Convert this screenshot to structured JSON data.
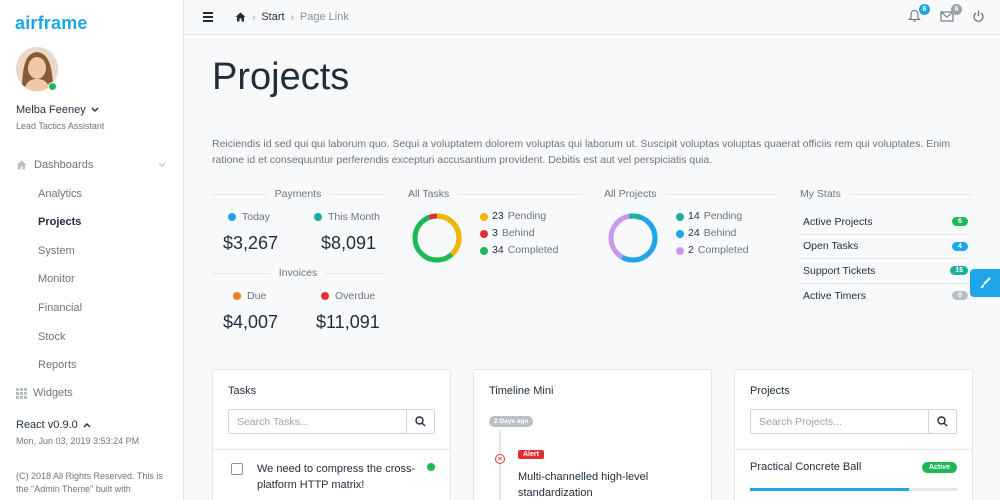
{
  "brand": "airframe",
  "user": {
    "name": "Melba Feeney",
    "role": "Lead Tactics Assistant"
  },
  "sidebar": {
    "group": "Dashboards",
    "items": [
      {
        "label": "Analytics",
        "active": false
      },
      {
        "label": "Projects",
        "active": true
      },
      {
        "label": "System",
        "active": false
      },
      {
        "label": "Monitor",
        "active": false
      },
      {
        "label": "Financial",
        "active": false
      },
      {
        "label": "Stock",
        "active": false
      },
      {
        "label": "Reports",
        "active": false
      }
    ],
    "widgets": "Widgets",
    "version": "React v0.9.0",
    "date": "Mon, Jun 03, 2019 3:53:24 PM",
    "copyright": "(C) 2018 All Rights Reserved. This is the \"Admin Theme\" built with"
  },
  "topbar": {
    "crumb_start": "Start",
    "crumb_page": "Page Link",
    "notifications_count": "6",
    "messages_count": "6"
  },
  "page": {
    "title": "Projects",
    "intro": "Reiciendis id sed qui qui laborum quo. Sequi a voluptatem dolorem voluptas qui laborum ut. Suscipit voluptas voluptas quaerat officiis rem qui voluptates. Enim ratione id et consequuntur perferendis excepturi accusantium provident. Debitis est aut vel perspiciatis quia."
  },
  "payments": {
    "title": "Payments",
    "today_label": "Today",
    "today_value": "$3,267",
    "month_label": "This Month",
    "month_value": "$8,091"
  },
  "invoices": {
    "title": "Invoices",
    "due_label": "Due",
    "due_value": "$4,007",
    "overdue_label": "Overdue",
    "overdue_value": "$11,091"
  },
  "all_tasks": {
    "title": "All Tasks",
    "items": [
      {
        "count": "23",
        "label": "Pending",
        "color": "#f5b400"
      },
      {
        "count": "3",
        "label": "Behind",
        "color": "#e03131"
      },
      {
        "count": "34",
        "label": "Completed",
        "color": "#1db954"
      }
    ]
  },
  "all_projects": {
    "title": "All Projects",
    "items": [
      {
        "count": "14",
        "label": "Pending",
        "color": "#1fad9f"
      },
      {
        "count": "24",
        "label": "Behind",
        "color": "#1ea7e8"
      },
      {
        "count": "2",
        "label": "Completed",
        "color": "#c59bf0"
      }
    ]
  },
  "my_stats": {
    "title": "My Stats",
    "rows": [
      {
        "label": "Active Projects",
        "value": "6",
        "color": "#1db954"
      },
      {
        "label": "Open Tasks",
        "value": "4",
        "color": "#1ea7e8"
      },
      {
        "label": "Support Tickets",
        "value": "15",
        "color": "#1fad9f"
      },
      {
        "label": "Active Timers",
        "value": "0",
        "color": "#b8bfc6"
      }
    ]
  },
  "tasks_card": {
    "title": "Tasks",
    "search_placeholder": "Search Tasks...",
    "task": "We need to compress the cross-platform HTTP matrix!"
  },
  "timeline_card": {
    "title": "Timeline Mini",
    "date": "2 Days ago",
    "alert": "Alert",
    "text": "Multi-channelled high-level standardization"
  },
  "projects_card": {
    "title": "Projects",
    "search_placeholder": "Search Projects...",
    "project": "Practical Concrete Ball",
    "status": "Active",
    "progress": 0.77
  }
}
